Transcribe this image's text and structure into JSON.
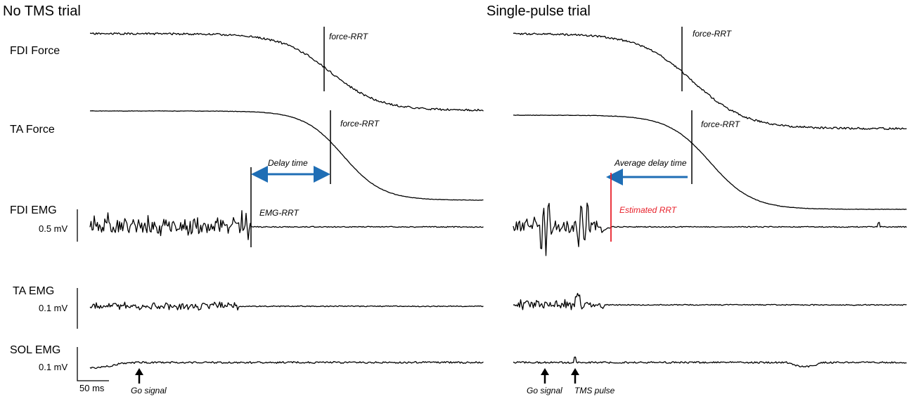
{
  "panels": {
    "left_title": "No TMS trial",
    "right_title": "Single-pulse trial"
  },
  "rows": {
    "fdi_force": "FDI Force",
    "ta_force": "TA Force",
    "fdi_emg": "FDI EMG",
    "ta_emg": "TA EMG",
    "sol_emg": "SOL EMG"
  },
  "scales": {
    "fdi_emg": "0.5 mV",
    "ta_emg": "0.1 mV",
    "sol_emg": "0.1 mV",
    "time": "50 ms"
  },
  "annotations": {
    "left_fdi_force_rrt": "force-RRT",
    "left_ta_force_rrt": "force-RRT",
    "left_delay": "Delay time",
    "left_emg_rrt": "EMG-RRT",
    "left_go": "Go signal",
    "right_fdi_force_rrt": "force-RRT",
    "right_ta_force_rrt": "force-RRT",
    "right_delay": "Average delay time",
    "right_estimated_rrt": "Estimated RRT",
    "right_go": "Go signal",
    "right_tms": "TMS pulse"
  },
  "colors": {
    "delay_arrow": "#1f6eb5",
    "estimated_rrt": "#e8202a",
    "trace": "#000000"
  }
}
